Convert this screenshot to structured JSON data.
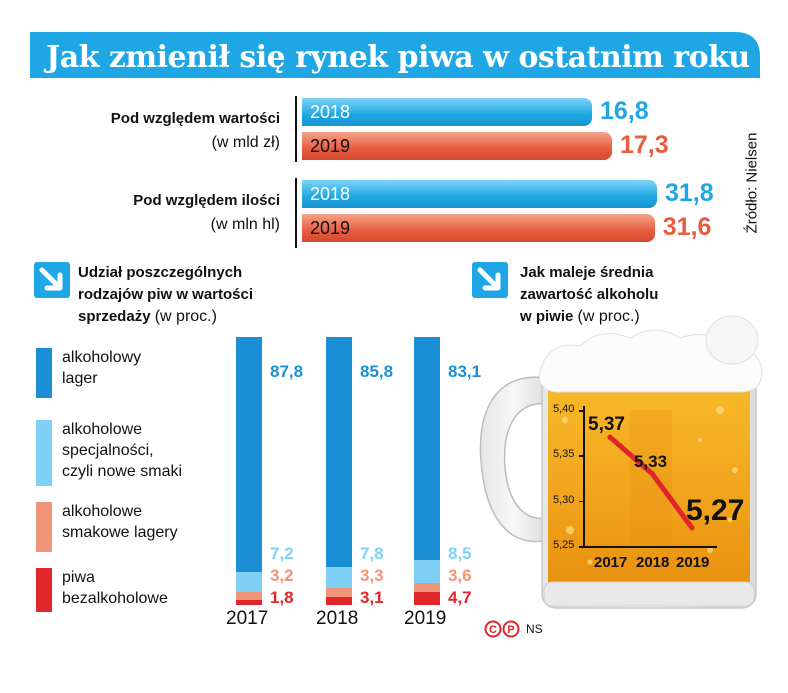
{
  "header": {
    "title": "Jak zmienił się rynek piwa w ostatnim roku",
    "source": "Źródło: Nielsen"
  },
  "market": {
    "value": {
      "label": "Pod względem wartości",
      "unit": "(w mld zł)",
      "rows": [
        {
          "year": "2018",
          "value": 16.8,
          "display": "16,8",
          "color": "#1ea7e4"
        },
        {
          "year": "2019",
          "value": 17.3,
          "display": "17,3",
          "color": "#e85c3f"
        }
      ]
    },
    "volume": {
      "label": "Pod względem ilości",
      "unit": "(w mln hl)",
      "rows": [
        {
          "year": "2018",
          "value": 31.8,
          "display": "31,8",
          "color": "#1ea7e4"
        },
        {
          "year": "2019",
          "value": 31.6,
          "display": "31,6",
          "color": "#e85c3f"
        }
      ]
    }
  },
  "share_section": {
    "title_lines": [
      "Udział poszczególnych",
      "rodzajów piw w wartości",
      "sprzedaży"
    ],
    "unit": "(w proc.)"
  },
  "alcohol_section": {
    "title_lines": [
      "Jak maleje średnia",
      "zawartość alkoholu",
      "w piwie"
    ],
    "unit": "(w proc.)"
  },
  "legend": [
    {
      "lines": [
        "alkoholowy",
        "lager"
      ],
      "color": "#1b8fd6"
    },
    {
      "lines": [
        "alkoholowe",
        "specjalności,",
        "czyli nowe smaki"
      ],
      "color": "#7fd0f5"
    },
    {
      "lines": [
        "alkoholowe",
        "smakowe lagery"
      ],
      "color": "#f0957a"
    },
    {
      "lines": [
        "piwa",
        "bezalkoholowe"
      ],
      "color": "#e0252b"
    }
  ],
  "footer": {
    "credit": "NS"
  },
  "chart_data": [
    {
      "type": "bar",
      "title": "Udział poszczególnych rodzajów piw w wartości sprzedaży (w proc.)",
      "categories": [
        "2017",
        "2018",
        "2019"
      ],
      "series": [
        {
          "name": "alkoholowy lager",
          "values": [
            87.8,
            85.8,
            83.1
          ],
          "display": [
            "87,8",
            "85,8",
            "83,1"
          ],
          "color": "#1b8fd6"
        },
        {
          "name": "alkoholowe specjalności, czyli nowe smaki",
          "values": [
            7.2,
            7.8,
            8.5
          ],
          "display": [
            "7,2",
            "7,8",
            "8,5"
          ],
          "color": "#7fd0f5"
        },
        {
          "name": "alkoholowe smakowe lagery",
          "values": [
            3.2,
            3.3,
            3.6
          ],
          "display": [
            "3,2",
            "3,3",
            "3,6"
          ],
          "color": "#f0957a"
        },
        {
          "name": "piwa bezalkoholowe",
          "values": [
            1.8,
            3.1,
            4.7
          ],
          "display": [
            "1,8",
            "3,1",
            "4,7"
          ],
          "color": "#e0252b"
        }
      ],
      "stacked": true
    },
    {
      "type": "line",
      "title": "Jak maleje średnia zawartość alkoholu w piwie (w proc.)",
      "x": [
        "2017",
        "2018",
        "2019"
      ],
      "y": [
        5.37,
        5.33,
        5.27
      ],
      "display": [
        "5,37",
        "5,33",
        "5,27"
      ],
      "yticks": [
        "5,40",
        "5,35",
        "5,30",
        "5,25"
      ],
      "ytick_values": [
        5.4,
        5.35,
        5.3,
        5.25
      ],
      "ylim": [
        5.25,
        5.4
      ],
      "line_color": "#e0252b",
      "grid": false
    }
  ]
}
